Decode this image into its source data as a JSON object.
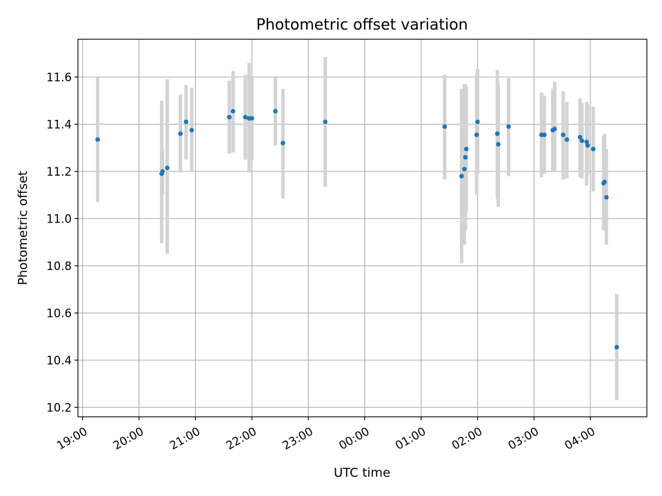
{
  "chart_data": {
    "type": "scatter",
    "title": "Photometric offset variation",
    "xlabel": "UTC time",
    "ylabel": "Photometric offset",
    "grid": true,
    "xlim": [
      "18:55",
      "29:00"
    ],
    "ylim": [
      10.16,
      11.76
    ],
    "x_ticks": [
      "19:00",
      "20:00",
      "21:00",
      "22:00",
      "23:00",
      "00:00",
      "01:00",
      "02:00",
      "03:00",
      "04:00"
    ],
    "y_ticks": [
      10.2,
      10.4,
      10.6,
      10.8,
      11.0,
      11.2,
      11.4,
      11.6
    ],
    "colors": {
      "point": "#1f77b4",
      "errorbar": "#d3d3d3",
      "grid": "#b0b0b0"
    },
    "points": [
      {
        "t": "19:16",
        "y": 11.335,
        "lo": 11.07,
        "hi": 11.6
      },
      {
        "t": "20:24",
        "y": 11.19,
        "lo": 10.895,
        "hi": 11.5
      },
      {
        "t": "20:25",
        "y": 11.2,
        "lo": 11.1,
        "hi": 11.3
      },
      {
        "t": "20:30",
        "y": 11.215,
        "lo": 10.85,
        "hi": 11.59
      },
      {
        "t": "20:44",
        "y": 11.36,
        "lo": 11.195,
        "hi": 11.525
      },
      {
        "t": "20:50",
        "y": 11.41,
        "lo": 11.25,
        "hi": 11.565
      },
      {
        "t": "20:56",
        "y": 11.375,
        "lo": 11.2,
        "hi": 11.555
      },
      {
        "t": "21:36",
        "y": 11.43,
        "lo": 11.275,
        "hi": 11.585
      },
      {
        "t": "21:40",
        "y": 11.455,
        "lo": 11.28,
        "hi": 11.625
      },
      {
        "t": "21:53",
        "y": 11.43,
        "lo": 11.25,
        "hi": 11.61
      },
      {
        "t": "21:57",
        "y": 11.425,
        "lo": 11.195,
        "hi": 11.66
      },
      {
        "t": "22:00",
        "y": 11.425,
        "lo": 11.25,
        "hi": 11.6
      },
      {
        "t": "22:25",
        "y": 11.455,
        "lo": 11.31,
        "hi": 11.6
      },
      {
        "t": "22:33",
        "y": 11.32,
        "lo": 11.085,
        "hi": 11.55
      },
      {
        "t": "23:18",
        "y": 11.41,
        "lo": 11.135,
        "hi": 11.685
      },
      {
        "t": "25:25",
        "y": 11.39,
        "lo": 11.165,
        "hi": 11.61
      },
      {
        "t": "25:43",
        "y": 11.18,
        "lo": 10.81,
        "hi": 11.55
      },
      {
        "t": "25:46",
        "y": 11.21,
        "lo": 10.89,
        "hi": 11.57
      },
      {
        "t": "25:47",
        "y": 11.26,
        "lo": 10.95,
        "hi": 11.57
      },
      {
        "t": "25:48",
        "y": 11.295,
        "lo": 11.025,
        "hi": 11.56
      },
      {
        "t": "25:59",
        "y": 11.355,
        "lo": 11.1,
        "hi": 11.61
      },
      {
        "t": "26:00",
        "y": 11.41,
        "lo": 11.19,
        "hi": 11.635
      },
      {
        "t": "26:21",
        "y": 11.36,
        "lo": 11.085,
        "hi": 11.63
      },
      {
        "t": "26:22",
        "y": 11.315,
        "lo": 11.05,
        "hi": 11.575
      },
      {
        "t": "26:33",
        "y": 11.39,
        "lo": 11.18,
        "hi": 11.595
      },
      {
        "t": "27:08",
        "y": 11.355,
        "lo": 11.175,
        "hi": 11.535
      },
      {
        "t": "27:11",
        "y": 11.355,
        "lo": 11.19,
        "hi": 11.52
      },
      {
        "t": "27:20",
        "y": 11.375,
        "lo": 11.2,
        "hi": 11.55
      },
      {
        "t": "27:22",
        "y": 11.38,
        "lo": 11.2,
        "hi": 11.58
      },
      {
        "t": "27:31",
        "y": 11.355,
        "lo": 11.165,
        "hi": 11.54
      },
      {
        "t": "27:35",
        "y": 11.335,
        "lo": 11.17,
        "hi": 11.495
      },
      {
        "t": "27:49",
        "y": 11.345,
        "lo": 11.175,
        "hi": 11.51
      },
      {
        "t": "27:51",
        "y": 11.33,
        "lo": 11.17,
        "hi": 11.49
      },
      {
        "t": "27:56",
        "y": 11.325,
        "lo": 11.14,
        "hi": 11.495
      },
      {
        "t": "27:57",
        "y": 11.31,
        "lo": 11.185,
        "hi": 11.485
      },
      {
        "t": "28:03",
        "y": 11.295,
        "lo": 11.115,
        "hi": 11.475
      },
      {
        "t": "28:14",
        "y": 11.15,
        "lo": 10.95,
        "hi": 11.35
      },
      {
        "t": "28:15",
        "y": 11.155,
        "lo": 10.96,
        "hi": 11.36
      },
      {
        "t": "28:17",
        "y": 11.09,
        "lo": 10.89,
        "hi": 11.295
      },
      {
        "t": "28:28",
        "y": 10.455,
        "lo": 10.23,
        "hi": 10.68
      }
    ]
  }
}
